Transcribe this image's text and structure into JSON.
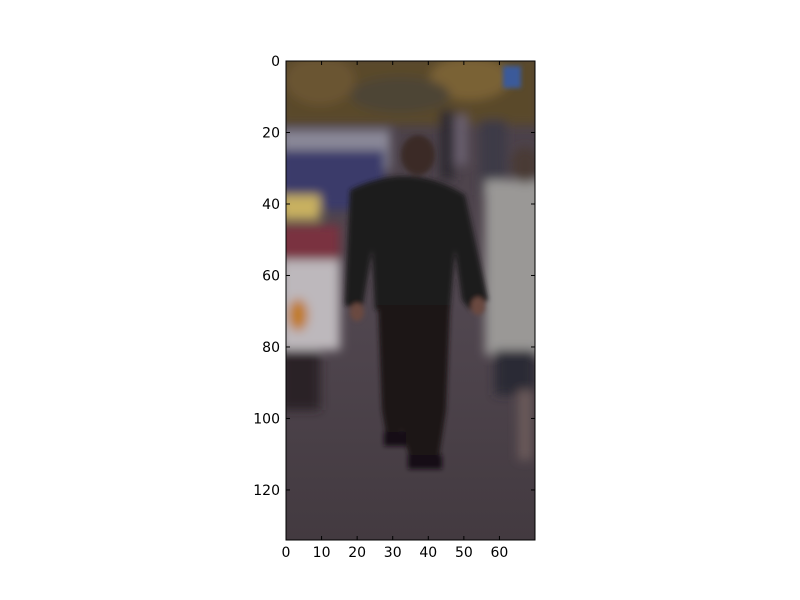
{
  "chart_data": {
    "type": "image",
    "title": "",
    "xlabel": "",
    "ylabel": "",
    "xlim": [
      0,
      70
    ],
    "ylim": [
      134,
      0
    ],
    "x_ticks": [
      0,
      10,
      20,
      30,
      40,
      50,
      60
    ],
    "y_ticks": [
      0,
      20,
      40,
      60,
      80,
      100,
      120
    ],
    "x_tick_labels": [
      "0",
      "10",
      "20",
      "30",
      "40",
      "50",
      "60"
    ],
    "y_tick_labels": [
      "0",
      "20",
      "40",
      "60",
      "80",
      "100",
      "120"
    ],
    "grid": false,
    "image_content": "blurred photo of a man in a dark jacket walking away on a sidewalk, parked cars on the left, a woman in a light coat on the right"
  }
}
